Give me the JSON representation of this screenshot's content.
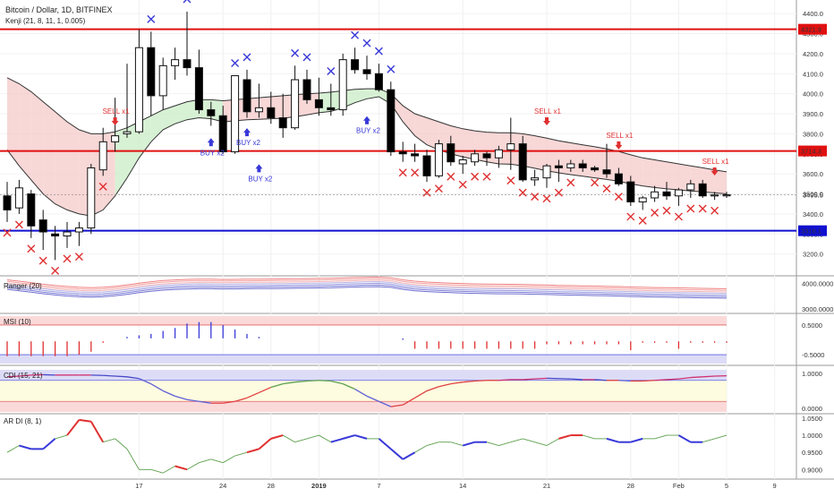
{
  "header": {
    "title": "Bitcoin / Dollar, 1D, BITFINEX",
    "indicator": "Kenji (21, 8, 11, 1, 0.005)"
  },
  "colors": {
    "up_candle": "#ffffff",
    "down_candle": "#000000",
    "resistance": "#e01010",
    "support": "#1010d0",
    "buy": "#3838d8",
    "sell": "#e03030",
    "cloud_red": "#f6c9c9",
    "cloud_green": "#c9ecc6"
  },
  "x_axis": {
    "labels": [
      {
        "label": "17",
        "i": 11
      },
      {
        "label": "24",
        "i": 18
      },
      {
        "label": "28",
        "i": 22
      },
      {
        "label": "2019",
        "i": 26
      },
      {
        "label": "7",
        "i": 31
      },
      {
        "label": "14",
        "i": 38
      },
      {
        "label": "21",
        "i": 45
      },
      {
        "label": "28",
        "i": 52
      },
      {
        "label": "Feb",
        "i": 56
      },
      {
        "label": "5",
        "i": 60
      },
      {
        "label": "9",
        "i": 64
      }
    ]
  },
  "chart_data": [
    {
      "name": "price",
      "type": "candlestick",
      "title": "Bitcoin / Dollar, 1D, BITFINEX",
      "ylim": [
        3100,
        4450
      ],
      "yticks": [
        3200,
        3300,
        3400,
        3500,
        3600,
        3700,
        3800,
        3900,
        4000,
        4100,
        4200,
        4300,
        4400
      ],
      "price_labels": [
        {
          "label": "4321.9",
          "value": 4321.9,
          "kind": "resistance"
        },
        {
          "label": "3714.3",
          "value": 3714.3,
          "kind": "resistance"
        },
        {
          "label": "3495.5",
          "value": 3495.5,
          "kind": "last"
        },
        {
          "label": "3316.1",
          "value": 3316.1,
          "kind": "support"
        }
      ],
      "levels": [
        4321.9,
        3714.3,
        3316.1
      ],
      "candles": [
        {
          "o": 3490,
          "h": 3560,
          "l": 3360,
          "c": 3420
        },
        {
          "o": 3430,
          "h": 3570,
          "l": 3400,
          "c": 3530
        },
        {
          "o": 3500,
          "h": 3520,
          "l": 3280,
          "c": 3340
        },
        {
          "o": 3370,
          "h": 3420,
          "l": 3220,
          "c": 3310
        },
        {
          "o": 3300,
          "h": 3340,
          "l": 3170,
          "c": 3290
        },
        {
          "o": 3290,
          "h": 3360,
          "l": 3230,
          "c": 3310
        },
        {
          "o": 3310,
          "h": 3360,
          "l": 3240,
          "c": 3330
        },
        {
          "o": 3330,
          "h": 3650,
          "l": 3300,
          "c": 3630
        },
        {
          "o": 3620,
          "h": 3830,
          "l": 3590,
          "c": 3760
        },
        {
          "o": 3760,
          "h": 3980,
          "l": 3710,
          "c": 3790
        },
        {
          "o": 3800,
          "h": 4150,
          "l": 3780,
          "c": 3810
        },
        {
          "o": 3810,
          "h": 4320,
          "l": 3800,
          "c": 4230
        },
        {
          "o": 4230,
          "h": 4310,
          "l": 3890,
          "c": 3990
        },
        {
          "o": 3990,
          "h": 4180,
          "l": 3920,
          "c": 4140
        },
        {
          "o": 4140,
          "h": 4230,
          "l": 4070,
          "c": 4170
        },
        {
          "o": 4170,
          "h": 4410,
          "l": 4090,
          "c": 4130
        },
        {
          "o": 4130,
          "h": 4220,
          "l": 3900,
          "c": 3920
        },
        {
          "o": 3920,
          "h": 3960,
          "l": 3840,
          "c": 3890
        },
        {
          "o": 3890,
          "h": 3940,
          "l": 3700,
          "c": 3710
        },
        {
          "o": 3710,
          "h": 4090,
          "l": 3700,
          "c": 4090
        },
        {
          "o": 4070,
          "h": 4120,
          "l": 3880,
          "c": 3910
        },
        {
          "o": 3910,
          "h": 4050,
          "l": 3880,
          "c": 3930
        },
        {
          "o": 3930,
          "h": 4010,
          "l": 3850,
          "c": 3880
        },
        {
          "o": 3880,
          "h": 4000,
          "l": 3780,
          "c": 3830
        },
        {
          "o": 3830,
          "h": 4140,
          "l": 3820,
          "c": 4070
        },
        {
          "o": 4070,
          "h": 4120,
          "l": 3950,
          "c": 3970
        },
        {
          "o": 3970,
          "h": 4080,
          "l": 3890,
          "c": 3930
        },
        {
          "o": 3930,
          "h": 4050,
          "l": 3890,
          "c": 3920
        },
        {
          "o": 3920,
          "h": 4200,
          "l": 3890,
          "c": 4170
        },
        {
          "o": 4170,
          "h": 4230,
          "l": 4100,
          "c": 4120
        },
        {
          "o": 4120,
          "h": 4190,
          "l": 4070,
          "c": 4100
        },
        {
          "o": 4100,
          "h": 4150,
          "l": 4010,
          "c": 4020
        },
        {
          "o": 4020,
          "h": 4060,
          "l": 3690,
          "c": 3710
        },
        {
          "o": 3710,
          "h": 3760,
          "l": 3660,
          "c": 3700
        },
        {
          "o": 3700,
          "h": 3750,
          "l": 3660,
          "c": 3690
        },
        {
          "o": 3690,
          "h": 3720,
          "l": 3560,
          "c": 3590
        },
        {
          "o": 3590,
          "h": 3770,
          "l": 3580,
          "c": 3750
        },
        {
          "o": 3750,
          "h": 3790,
          "l": 3640,
          "c": 3660
        },
        {
          "o": 3650,
          "h": 3690,
          "l": 3600,
          "c": 3670
        },
        {
          "o": 3660,
          "h": 3720,
          "l": 3640,
          "c": 3700
        },
        {
          "o": 3700,
          "h": 3710,
          "l": 3640,
          "c": 3680
        },
        {
          "o": 3680,
          "h": 3740,
          "l": 3630,
          "c": 3720
        },
        {
          "o": 3720,
          "h": 3880,
          "l": 3620,
          "c": 3750
        },
        {
          "o": 3750,
          "h": 3790,
          "l": 3560,
          "c": 3570
        },
        {
          "o": 3570,
          "h": 3620,
          "l": 3540,
          "c": 3580
        },
        {
          "o": 3580,
          "h": 3650,
          "l": 3530,
          "c": 3640
        },
        {
          "o": 3640,
          "h": 3670,
          "l": 3560,
          "c": 3630
        },
        {
          "o": 3630,
          "h": 3670,
          "l": 3610,
          "c": 3650
        },
        {
          "o": 3650,
          "h": 3670,
          "l": 3610,
          "c": 3630
        },
        {
          "o": 3630,
          "h": 3640,
          "l": 3610,
          "c": 3620
        },
        {
          "o": 3620,
          "h": 3750,
          "l": 3580,
          "c": 3600
        },
        {
          "o": 3600,
          "h": 3630,
          "l": 3540,
          "c": 3550
        },
        {
          "o": 3560,
          "h": 3590,
          "l": 3440,
          "c": 3460
        },
        {
          "o": 3460,
          "h": 3490,
          "l": 3420,
          "c": 3480
        },
        {
          "o": 3480,
          "h": 3540,
          "l": 3460,
          "c": 3510
        },
        {
          "o": 3510,
          "h": 3560,
          "l": 3470,
          "c": 3490
        },
        {
          "o": 3490,
          "h": 3530,
          "l": 3440,
          "c": 3520
        },
        {
          "o": 3520,
          "h": 3570,
          "l": 3480,
          "c": 3550
        },
        {
          "o": 3550,
          "h": 3570,
          "l": 3480,
          "c": 3490
        },
        {
          "o": 3490,
          "h": 3510,
          "l": 3470,
          "c": 3495
        },
        {
          "o": 3495,
          "h": 3510,
          "l": 3480,
          "c": 3495.5
        }
      ],
      "upper_band": [
        4080,
        4050,
        4010,
        3960,
        3910,
        3860,
        3820,
        3800,
        3800,
        3810,
        3830,
        3860,
        3890,
        3920,
        3940,
        3960,
        3970,
        3970,
        3965,
        3970,
        3975,
        3980,
        3985,
        3990,
        3995,
        4000,
        4003,
        4008,
        4015,
        4022,
        4025,
        4025,
        4000,
        3940,
        3900,
        3880,
        3860,
        3840,
        3825,
        3815,
        3808,
        3805,
        3805,
        3800,
        3790,
        3778,
        3765,
        3755,
        3745,
        3735,
        3725,
        3712,
        3695,
        3680,
        3670,
        3660,
        3650,
        3640,
        3630,
        3620,
        3610
      ],
      "lower_band": [
        3720,
        3640,
        3570,
        3500,
        3450,
        3420,
        3400,
        3390,
        3420,
        3490,
        3580,
        3680,
        3760,
        3820,
        3850,
        3870,
        3880,
        3875,
        3860,
        3865,
        3870,
        3872,
        3875,
        3878,
        3885,
        3895,
        3905,
        3912,
        3930,
        3955,
        3975,
        3985,
        3950,
        3860,
        3790,
        3745,
        3720,
        3700,
        3685,
        3672,
        3660,
        3650,
        3648,
        3640,
        3628,
        3615,
        3605,
        3596,
        3588,
        3580,
        3572,
        3563,
        3550,
        3540,
        3532,
        3525,
        3520,
        3515,
        3510,
        3505,
        3500
      ],
      "buy_signals": [
        {
          "i": 15,
          "label": ""
        },
        {
          "i": 12,
          "label": ""
        },
        {
          "i": 19,
          "label": ""
        },
        {
          "i": 20,
          "label": ""
        },
        {
          "i": 24,
          "label": ""
        },
        {
          "i": 25,
          "label": ""
        },
        {
          "i": 27,
          "label": ""
        },
        {
          "i": 29,
          "label": ""
        },
        {
          "i": 30,
          "label": ""
        },
        {
          "i": 31,
          "label": ""
        },
        {
          "i": 32,
          "label": ""
        }
      ],
      "sell_signals": [
        {
          "i": 0,
          "label": ""
        },
        {
          "i": 1,
          "label": ""
        },
        {
          "i": 2,
          "label": ""
        },
        {
          "i": 3,
          "label": ""
        },
        {
          "i": 4,
          "label": ""
        },
        {
          "i": 5,
          "label": ""
        },
        {
          "i": 6,
          "label": ""
        },
        {
          "i": 8,
          "label": ""
        },
        {
          "i": 33,
          "label": ""
        },
        {
          "i": 34,
          "label": ""
        },
        {
          "i": 35,
          "label": ""
        },
        {
          "i": 36,
          "label": ""
        },
        {
          "i": 37,
          "label": ""
        },
        {
          "i": 38,
          "label": ""
        },
        {
          "i": 39,
          "label": ""
        },
        {
          "i": 40,
          "label": ""
        },
        {
          "i": 42,
          "label": ""
        },
        {
          "i": 43,
          "label": ""
        },
        {
          "i": 44,
          "label": ""
        },
        {
          "i": 45,
          "label": ""
        },
        {
          "i": 46,
          "label": ""
        },
        {
          "i": 47,
          "label": ""
        },
        {
          "i": 49,
          "label": ""
        },
        {
          "i": 50,
          "label": ""
        },
        {
          "i": 51,
          "label": ""
        },
        {
          "i": 52,
          "label": ""
        },
        {
          "i": 53,
          "label": ""
        },
        {
          "i": 54,
          "label": ""
        },
        {
          "i": 55,
          "label": ""
        },
        {
          "i": 56,
          "label": ""
        },
        {
          "i": 57,
          "label": ""
        },
        {
          "i": 58,
          "label": ""
        },
        {
          "i": 59,
          "label": ""
        }
      ],
      "annotations": [
        {
          "text": "SELL x1",
          "i": 9,
          "price": 3900,
          "kind": "sell"
        },
        {
          "text": "BUY x2",
          "i": 17,
          "price": 3720,
          "kind": "buy"
        },
        {
          "text": "BUY x2",
          "i": 20,
          "price": 3770,
          "kind": "buy"
        },
        {
          "text": "BUY x2",
          "i": 21,
          "price": 3590,
          "kind": "buy"
        },
        {
          "text": "BUY x2",
          "i": 30,
          "price": 3830,
          "kind": "buy"
        },
        {
          "text": "SELL x1",
          "i": 45,
          "price": 3900,
          "kind": "sell"
        },
        {
          "text": "SELL x1",
          "i": 51,
          "price": 3780,
          "kind": "sell"
        },
        {
          "text": "SELL x1",
          "i": 59,
          "price": 3650,
          "kind": "sell"
        }
      ]
    },
    {
      "name": "ranger",
      "type": "line",
      "title": "Ranger (20)",
      "ylim": [
        2900,
        4150
      ],
      "yticks": [
        {
          "label": "4000.0000",
          "value": 4000
        },
        {
          "label": "3000.0000",
          "value": 3000
        }
      ]
    },
    {
      "name": "msi",
      "type": "bar",
      "title": "MSI (10)",
      "ylim": [
        -0.8,
        0.8
      ],
      "yticks": [
        {
          "label": "0.5000",
          "value": 0.5
        },
        {
          "label": "-0.5000",
          "value": -0.5
        }
      ],
      "values": [
        -0.55,
        -0.55,
        -0.55,
        -0.55,
        -0.55,
        -0.55,
        -0.5,
        -0.4,
        -0.1,
        0.05,
        0.1,
        0.15,
        0.2,
        0.3,
        0.4,
        0.55,
        0.6,
        0.6,
        0.5,
        0.35,
        0.2,
        0.1,
        0.05,
        0.05,
        0.05,
        0.05,
        0.05,
        0.05,
        0.05,
        0.05,
        0.05,
        0.05,
        0.05,
        0.0,
        -0.3,
        -0.3,
        -0.3,
        -0.3,
        -0.3,
        -0.3,
        -0.3,
        -0.3,
        -0.3,
        -0.3,
        -0.3,
        -0.15,
        -0.15,
        -0.15,
        -0.15,
        -0.15,
        -0.15,
        -0.15,
        -0.35,
        -0.1,
        -0.1,
        -0.1,
        -0.3,
        -0.1,
        -0.1,
        -0.1,
        -0.1
      ]
    },
    {
      "name": "cdi",
      "type": "line",
      "title": "CDI (15, 21)",
      "ylim": [
        -0.1,
        1.15
      ],
      "yticks": [
        {
          "label": "1.0000",
          "value": 1.0
        },
        {
          "label": "0.0000",
          "value": 0.0
        }
      ],
      "values": [
        0.9,
        0.92,
        0.95,
        0.96,
        0.95,
        0.95,
        0.95,
        0.95,
        0.94,
        0.92,
        0.9,
        0.85,
        0.7,
        0.5,
        0.35,
        0.25,
        0.2,
        0.15,
        0.15,
        0.2,
        0.3,
        0.45,
        0.6,
        0.7,
        0.75,
        0.78,
        0.8,
        0.78,
        0.7,
        0.55,
        0.35,
        0.2,
        0.05,
        0.1,
        0.3,
        0.5,
        0.62,
        0.7,
        0.75,
        0.78,
        0.8,
        0.8,
        0.82,
        0.82,
        0.84,
        0.86,
        0.85,
        0.84,
        0.82,
        0.82,
        0.8,
        0.8,
        0.78,
        0.78,
        0.8,
        0.82,
        0.84,
        0.88,
        0.9,
        0.92,
        0.93
      ]
    },
    {
      "name": "ardi",
      "type": "line",
      "title": "AR DI (8, 1)",
      "ylim": [
        0.88,
        1.055
      ],
      "yticks": [
        {
          "label": "1.0500",
          "value": 1.05
        },
        {
          "label": "1.0000",
          "value": 1.0
        },
        {
          "label": "0.9500",
          "value": 0.95
        },
        {
          "label": "0.9000",
          "value": 0.9
        }
      ],
      "values": [
        0.95,
        0.97,
        0.96,
        0.96,
        0.99,
        1.0,
        1.045,
        1.04,
        0.98,
        0.99,
        0.96,
        0.9,
        0.9,
        0.89,
        0.91,
        0.9,
        0.92,
        0.93,
        0.92,
        0.94,
        0.95,
        0.96,
        0.99,
        1.0,
        0.98,
        0.99,
        1.0,
        0.98,
        0.99,
        1.0,
        0.99,
        0.99,
        0.96,
        0.93,
        0.95,
        0.97,
        0.98,
        0.98,
        0.97,
        0.98,
        0.98,
        0.97,
        0.98,
        0.99,
        0.98,
        0.97,
        0.99,
        1.0,
        1.0,
        0.99,
        0.99,
        0.98,
        0.98,
        0.99,
        0.99,
        1.0,
        1.0,
        0.98,
        0.98,
        0.99,
        1.0
      ],
      "colored_segments": [
        {
          "from": 1,
          "to": 4,
          "kind": "buy"
        },
        {
          "from": 5,
          "to": 8,
          "kind": "sell"
        },
        {
          "from": 14,
          "to": 15,
          "kind": "sell"
        },
        {
          "from": 20,
          "to": 23,
          "kind": "sell"
        },
        {
          "from": 27,
          "to": 30,
          "kind": "buy"
        },
        {
          "from": 31,
          "to": 34,
          "kind": "buy"
        },
        {
          "from": 38,
          "to": 40,
          "kind": "buy"
        },
        {
          "from": 46,
          "to": 48,
          "kind": "sell"
        },
        {
          "from": 50,
          "to": 53,
          "kind": "buy"
        },
        {
          "from": 56,
          "to": 58,
          "kind": "buy"
        }
      ]
    }
  ]
}
